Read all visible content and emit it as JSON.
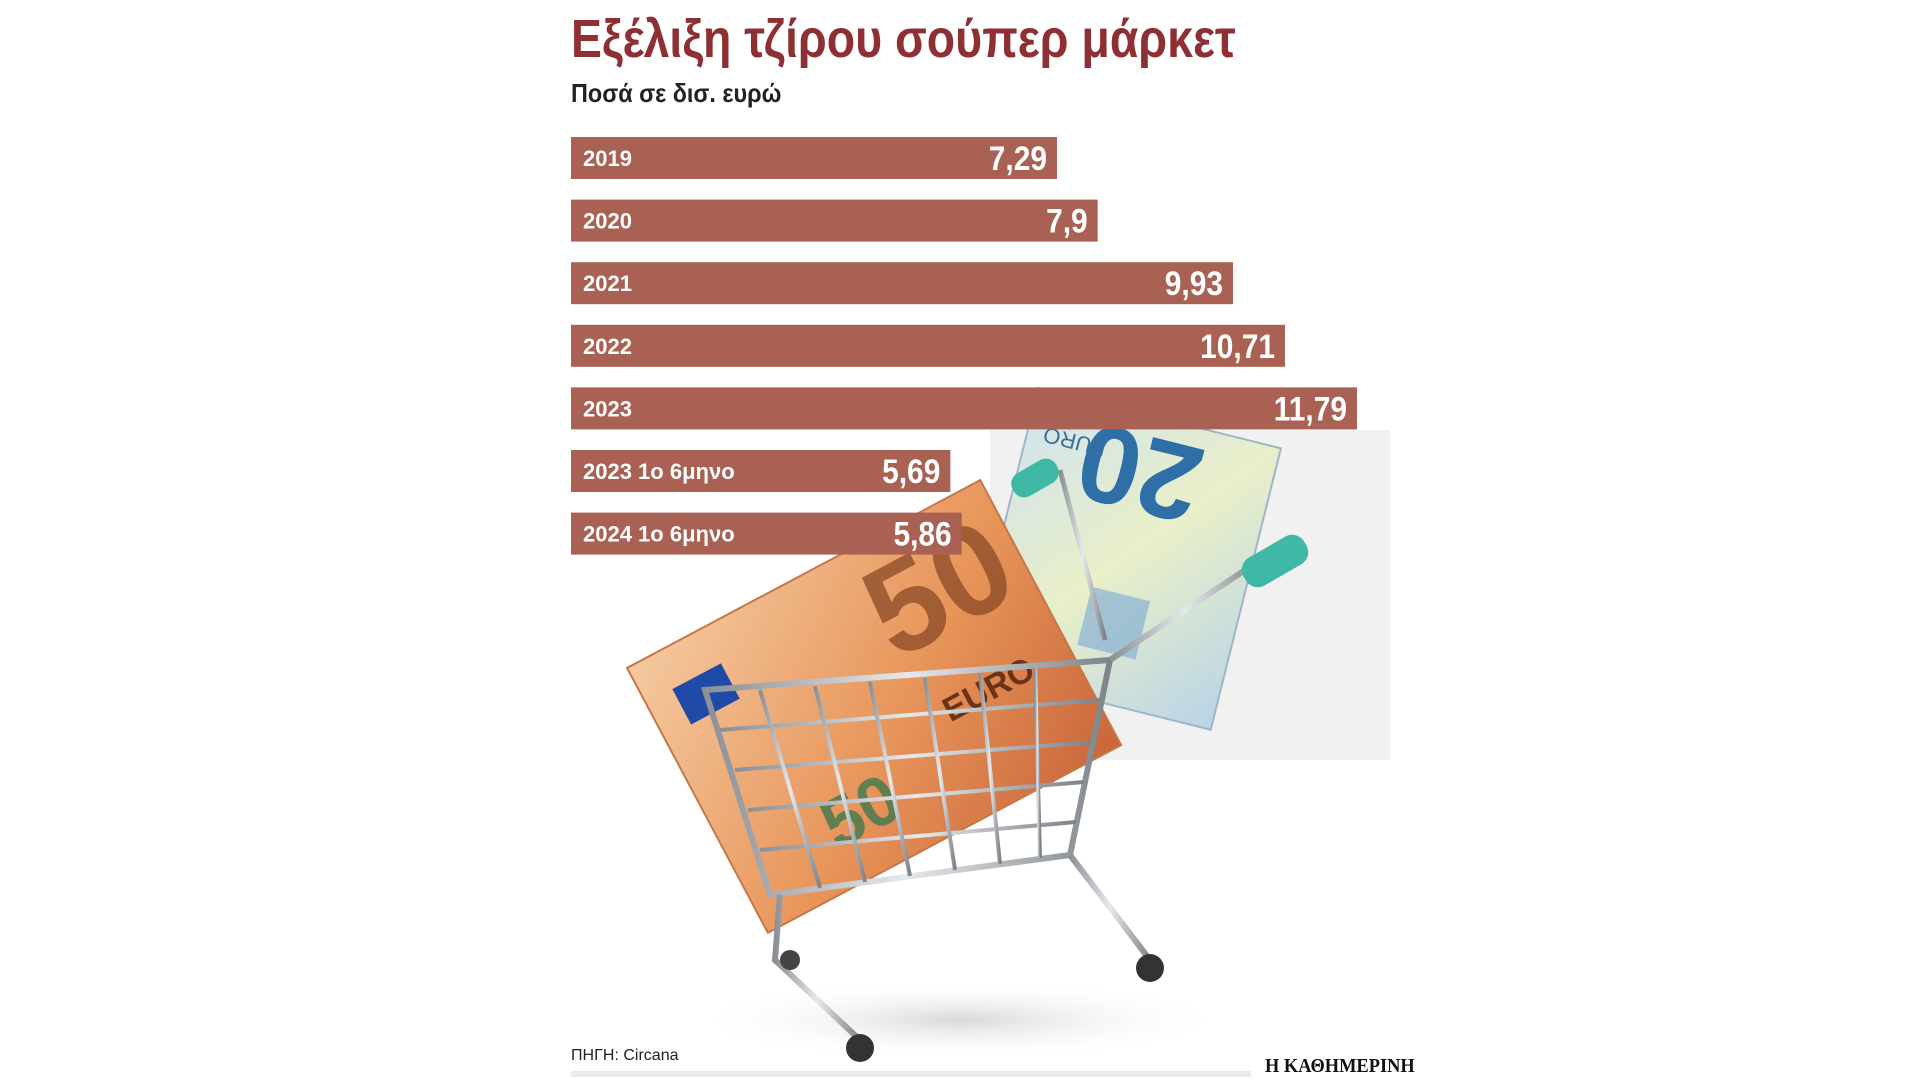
{
  "header": {
    "title": "Εξέλιξη τζίρου σούπερ μάρκετ",
    "subtitle": "Ποσά σε δισ. ευρώ"
  },
  "footer": {
    "source": "ΠΗΓΗ: Circana",
    "brand": "Η ΚΑΘΗΜΕΡΙΝΗ"
  },
  "colors": {
    "bar": "#a86152",
    "title": "#8e2f33",
    "bar_text": "#ffffff"
  },
  "chart_data": {
    "type": "bar",
    "orientation": "horizontal",
    "title": "Εξέλιξη τζίρου σούπερ μάρκετ",
    "subtitle": "Ποσά σε δισ. ευρώ",
    "categories": [
      "2019",
      "2020",
      "2021",
      "2022",
      "2023",
      "2023 1ο 6μηνο",
      "2024 1ο 6μηνο"
    ],
    "values": [
      7.29,
      7.9,
      9.93,
      10.71,
      11.79,
      5.69,
      5.86
    ],
    "value_labels": [
      "7,29",
      "7,9",
      "9,93",
      "10,71",
      "11,79",
      "5,69",
      "5,86"
    ],
    "xlim": [
      0,
      11.79
    ],
    "grid": false,
    "legend": "none",
    "background_image": "shopping-cart-with-euro-banknotes"
  }
}
